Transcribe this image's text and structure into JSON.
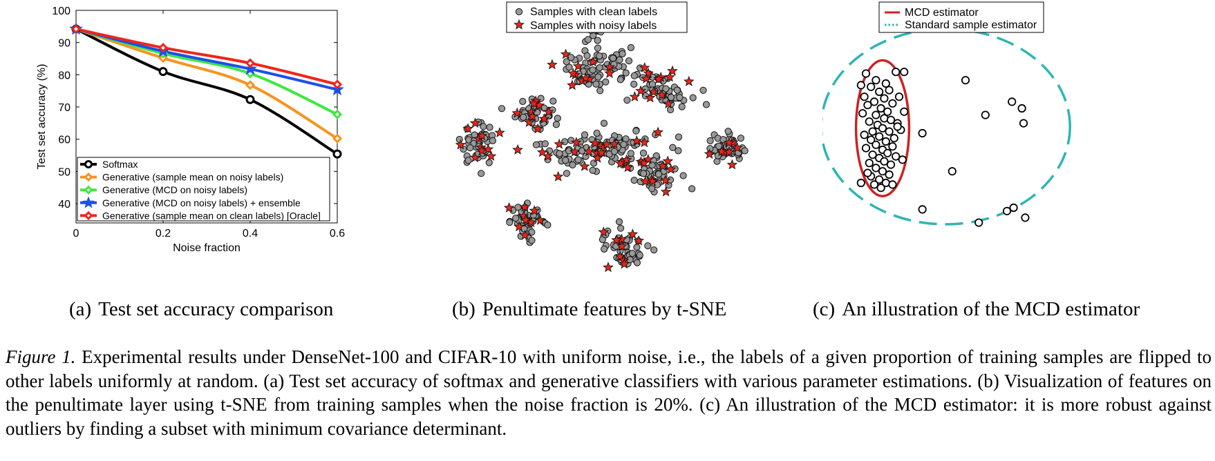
{
  "chart_data": [
    {
      "type": "line",
      "ylabel": "Test set accuracy (%)",
      "xlabel": "Noise fraction",
      "x": [
        0,
        0.2,
        0.4,
        0.6
      ],
      "x_ticks": [
        "0",
        "0.2",
        "0.4",
        "0.6"
      ],
      "y_ticks": [
        "40",
        "50",
        "60",
        "70",
        "80",
        "90",
        "100"
      ],
      "xlim": [
        0,
        0.6
      ],
      "ylim": [
        34,
        100
      ],
      "legend_position": "bottom-left",
      "grid": false,
      "series": [
        {
          "name": "Softmax",
          "color": "#000000",
          "marker": "circle",
          "values": [
            94.2,
            81.0,
            72.3,
            55.4
          ]
        },
        {
          "name": "Generative (sample mean on noisy labels)",
          "color": "#f7931e",
          "marker": "diamond",
          "values": [
            94.2,
            85.2,
            76.8,
            60.2
          ]
        },
        {
          "name": "Generative (MCD on noisy labels)",
          "color": "#3ee83e",
          "marker": "diamond",
          "values": [
            94.2,
            86.6,
            80.4,
            67.7
          ]
        },
        {
          "name": "Generative (MCD on noisy labels) + ensemble",
          "color": "#1a4ff0",
          "marker": "star",
          "values": [
            94.2,
            87.3,
            81.8,
            75.4
          ]
        },
        {
          "name": "Generative (sample mean on clean labels) [Oracle]",
          "color": "#f0251a",
          "marker": "diamond",
          "values": [
            94.2,
            88.4,
            83.6,
            77.0
          ]
        }
      ]
    },
    {
      "type": "scatter",
      "legend_position": "top-center",
      "series": [
        {
          "name": "Samples with clean labels",
          "color": "#999999",
          "marker": "circle",
          "clusters": [
            {
              "center": [
                -5,
                40
              ],
              "spread": [
                3.2,
                2.8
              ],
              "count": 45,
              "noisy_count": 12
            },
            {
              "center": [
                -24,
                6
              ],
              "spread": [
                3.4,
                3.0
              ],
              "count": 40,
              "noisy_count": 10
            },
            {
              "center": [
                -45,
                -6
              ],
              "spread": [
                3.2,
                3.6
              ],
              "count": 45,
              "noisy_count": 10
            },
            {
              "center": [
                -26,
                -35
              ],
              "spread": [
                3.4,
                3.0
              ],
              "count": 40,
              "noisy_count": 10
            },
            {
              "center": [
                0,
                22
              ],
              "spread": [
                7.0,
                3.6
              ],
              "count": 70,
              "noisy_count": 14
            },
            {
              "center": [
                25,
                14
              ],
              "spread": [
                5.0,
                3.0
              ],
              "count": 50,
              "noisy_count": 12
            },
            {
              "center": [
                47,
                -8
              ],
              "spread": [
                3.4,
                2.6
              ],
              "count": 45,
              "noisy_count": 8
            },
            {
              "center": [
                0,
                -8
              ],
              "spread": [
                11.0,
                4.0
              ],
              "count": 90,
              "noisy_count": 26
            },
            {
              "center": [
                20,
                -16
              ],
              "spread": [
                5.0,
                3.2
              ],
              "count": 45,
              "noisy_count": 10
            },
            {
              "center": [
                10,
                -45
              ],
              "spread": [
                4.0,
                3.6
              ],
              "count": 45,
              "noisy_count": 10
            }
          ]
        },
        {
          "name": "Samples with noisy labels",
          "color": "#e8251a",
          "marker": "star"
        }
      ]
    },
    {
      "type": "scatter",
      "legend_position": "top-right",
      "series": [
        {
          "name": "Data samples",
          "marker": "open-circle",
          "color": "#000000",
          "points": [
            [
              -1.5,
              1.8
            ],
            [
              -0.6,
              1.85
            ],
            [
              -1.2,
              1.6
            ],
            [
              -0.9,
              1.5
            ],
            [
              -1.35,
              1.4
            ],
            [
              -0.8,
              1.3
            ],
            [
              -1.1,
              1.25
            ],
            [
              -1.55,
              1.1
            ],
            [
              -0.95,
              1.05
            ],
            [
              -1.25,
              0.95
            ],
            [
              -0.7,
              0.9
            ],
            [
              -1.45,
              0.85
            ],
            [
              -1.05,
              0.75
            ],
            [
              -0.85,
              0.65
            ],
            [
              -1.6,
              0.6
            ],
            [
              -1.2,
              0.55
            ],
            [
              -0.95,
              0.45
            ],
            [
              -0.75,
              0.4
            ],
            [
              -1.4,
              0.35
            ],
            [
              -1.15,
              0.25
            ],
            [
              -0.55,
              0.3
            ],
            [
              -1.0,
              0.15
            ],
            [
              -1.3,
              0.05
            ],
            [
              -0.8,
              0.05
            ],
            [
              -1.55,
              -0.05
            ],
            [
              -1.1,
              -0.1
            ],
            [
              -0.65,
              -0.15
            ],
            [
              -1.35,
              -0.2
            ],
            [
              -0.9,
              -0.25
            ],
            [
              -1.2,
              -0.35
            ],
            [
              -0.7,
              -0.4
            ],
            [
              -1.5,
              -0.45
            ],
            [
              -1.0,
              -0.5
            ],
            [
              -0.85,
              -0.6
            ],
            [
              -1.3,
              -0.65
            ],
            [
              -0.6,
              -0.7
            ],
            [
              -1.1,
              -0.75
            ],
            [
              -0.95,
              -0.85
            ],
            [
              -1.4,
              -0.9
            ],
            [
              -0.75,
              -0.95
            ],
            [
              -1.2,
              -1.05
            ],
            [
              -1.0,
              -1.15
            ],
            [
              -0.8,
              -1.25
            ],
            [
              -1.35,
              -1.3
            ],
            [
              -1.1,
              -1.4
            ],
            [
              -0.9,
              -1.5
            ],
            [
              -1.05,
              -1.65
            ],
            [
              -0.7,
              -1.55
            ],
            [
              -1.45,
              -1.2
            ],
            [
              -1.25,
              -1.55
            ],
            [
              -0.5,
              1.1
            ],
            [
              -0.45,
              0.1
            ],
            [
              -0.4,
              -0.8
            ],
            [
              -1.65,
              -1.5
            ],
            [
              -1.65,
              1.45
            ],
            [
              -0.35,
              1.85
            ],
            [
              0.2,
              0.0
            ],
            [
              1.5,
              1.6
            ],
            [
              2.1,
              0.55
            ],
            [
              2.9,
              0.95
            ],
            [
              3.2,
              0.75
            ],
            [
              3.25,
              0.3
            ],
            [
              1.1,
              -1.15
            ],
            [
              0.2,
              -2.3
            ],
            [
              1.9,
              -2.7
            ],
            [
              2.75,
              -2.35
            ],
            [
              2.95,
              -2.25
            ],
            [
              3.3,
              -2.55
            ],
            [
              -0.35,
              0.65
            ],
            [
              -0.55,
              0.2
            ]
          ]
        },
        {
          "name": "MCD estimator",
          "marker": "ellipse",
          "color": "#cc2222",
          "center": [
            -1.0,
            0.15
          ],
          "radii": [
            0.8,
            2.05
          ]
        },
        {
          "name": "Standard sample estimator",
          "marker": "dashed-ellipse",
          "color": "#2cb5b5",
          "center": [
            0.9,
            0.2
          ],
          "radii": [
            3.75,
            2.95
          ]
        }
      ]
    }
  ],
  "subcaptions": {
    "a": {
      "tag": "(a)",
      "text": "Test set accuracy comparison"
    },
    "b": {
      "tag": "(b)",
      "text": "Penultimate features by t-SNE"
    },
    "c": {
      "tag": "(c)",
      "text": "An illustration of the MCD estimator"
    }
  },
  "caption": {
    "label": "Figure 1.",
    "text": " Experimental results under DenseNet-100 and CIFAR-10 with uniform noise, i.e., the labels of a given proportion of training samples are flipped to other labels uniformly at random. (a) Test set accuracy of softmax and generative classifiers with various parameter estimations. (b) Visualization of features on the penultimate layer using t-SNE from training samples when the noise fraction is 20%. (c) An illustration of the MCD estimator: it is more robust against outliers by finding a subset with minimum covariance determinant."
  },
  "legends": {
    "b": [
      "Samples with clean labels",
      "Samples with noisy labels"
    ],
    "c": [
      "MCD estimator",
      "Standard sample estimator"
    ]
  }
}
